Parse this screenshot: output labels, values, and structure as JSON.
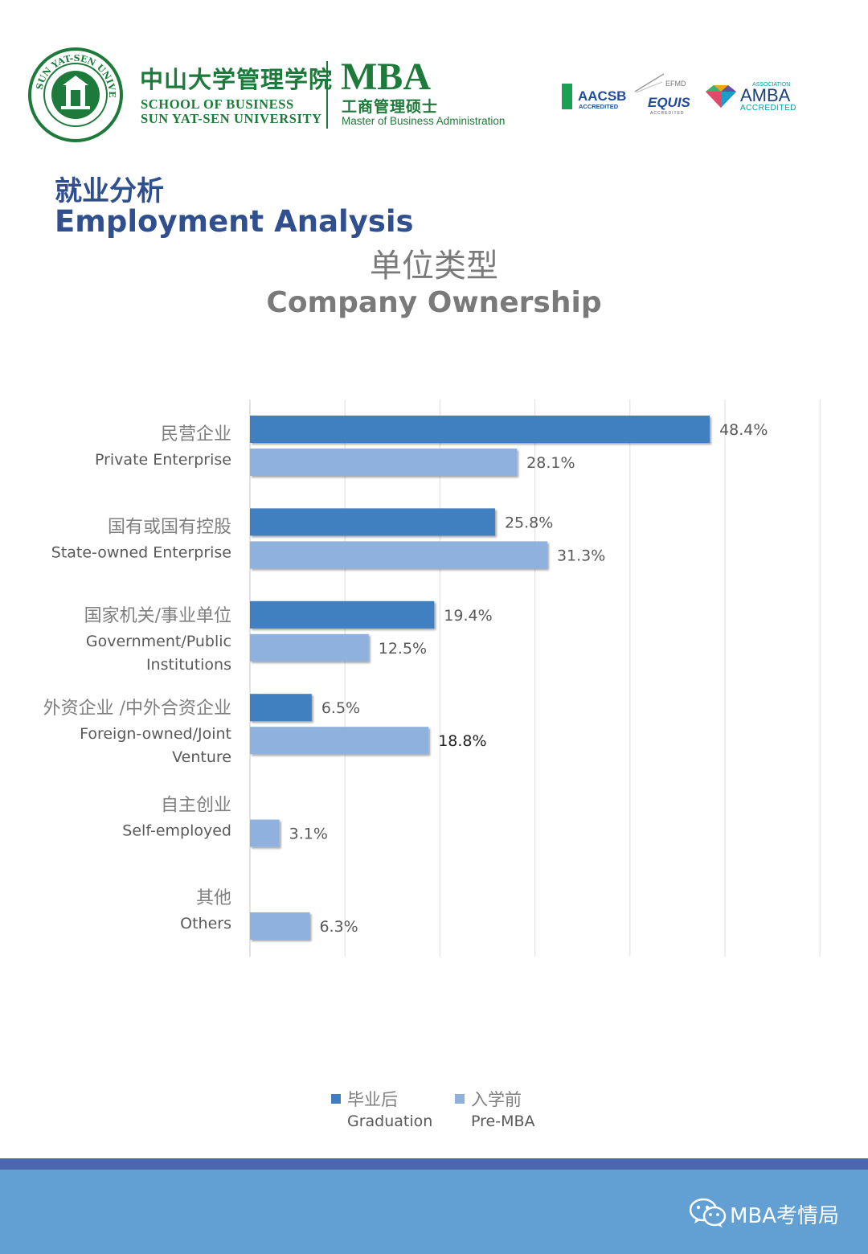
{
  "header": {
    "school_cn": "中山大学管理学院",
    "school_en_line1": "SCHOOL OF BUSINESS",
    "school_en_line2": "SUN YAT-SEN UNIVERSITY",
    "seal_text": "中山大學 SUN YAT-SEN UNIVERSITY",
    "program": "MBA",
    "program_cn": "工商管理硕士",
    "program_en": "Master of Business Administration",
    "accreditations": {
      "aacsb_name": "AACSB",
      "aacsb_sub": "ACCREDITED",
      "efmd": "EFMD",
      "equis": "EQUIS",
      "equis_sub": "ACCREDITED",
      "amba_assoc": "ASSOCIATION",
      "amba": "AMBA",
      "amba_sub": "ACCREDITED"
    }
  },
  "section": {
    "title_cn": "就业分析",
    "title_en": "Employment Analysis"
  },
  "chart_title": {
    "cn": "单位类型",
    "en": "Company Ownership"
  },
  "chart_data": {
    "type": "bar",
    "orientation": "horizontal",
    "title": "单位类型 Company Ownership",
    "categories": [
      {
        "cn": "民营企业",
        "en": [
          "Private Enterprise"
        ]
      },
      {
        "cn": "国有或国有控股",
        "en": [
          "State-owned Enterprise"
        ]
      },
      {
        "cn": "国家机关/事业单位",
        "en": [
          "Government/Public",
          "Institutions"
        ]
      },
      {
        "cn": "外资企业 /中外合资企业",
        "en": [
          "Foreign-owned/Joint",
          "Venture"
        ]
      },
      {
        "cn": "自主创业",
        "en": [
          "Self-employed"
        ]
      },
      {
        "cn": "其他",
        "en": [
          "Others"
        ]
      }
    ],
    "series": [
      {
        "name": "毕业后 Graduation",
        "color": "#3f7fc0",
        "values": [
          48.4,
          25.8,
          19.4,
          6.5,
          null,
          null
        ],
        "labels": [
          "48.4%",
          "25.8%",
          "19.4%",
          "6.5%",
          null,
          null
        ]
      },
      {
        "name": "入学前 Pre-MBA",
        "color": "#8eb2dd",
        "values": [
          28.1,
          31.3,
          12.5,
          18.8,
          3.1,
          6.3
        ],
        "labels": [
          "28.1%",
          "31.3%",
          "12.5%",
          "18.8%",
          "3.1%",
          "6.3%"
        ]
      }
    ],
    "xlim": [
      0,
      60
    ],
    "grid": true,
    "legend_position": "bottom"
  },
  "legend": [
    {
      "cn": "毕业后",
      "en": "Graduation",
      "color": "#3f7fc0"
    },
    {
      "cn": "入学前",
      "en": "Pre-MBA",
      "color": "#8eb2dd"
    }
  ],
  "footer": {
    "brand": "MBA考情局",
    "icon": "wechat-icon"
  }
}
